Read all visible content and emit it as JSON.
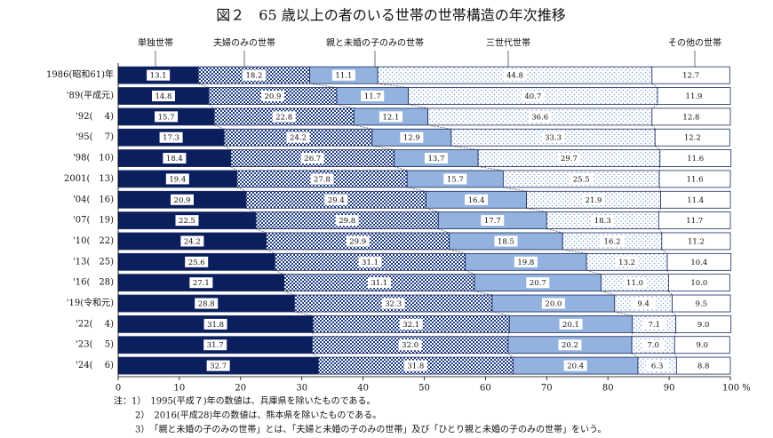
{
  "chart_data": {
    "type": "stacked-bar-horizontal",
    "title": "図２　65 歳以上の者のいる世帯の世帯構造の年次推移",
    "categories": [
      "1986(昭和61)年",
      "'89(平成元)",
      "'92(　 4)",
      "'95(　 7)",
      "'98(　10)",
      "2001(　13)",
      "'04(　16)",
      "'07(　19)",
      "'10(　22)",
      "'13(　25)",
      "'16(　28)",
      "'19(令和元)",
      "'22(　 4)",
      "'23(　 5)",
      "'24(　 6)"
    ],
    "series": [
      {
        "name": "単独世帯",
        "color": "#0b1f5e",
        "pattern": "solid",
        "values": [
          13.1,
          14.8,
          15.7,
          17.3,
          18.4,
          19.4,
          20.9,
          22.5,
          24.2,
          25.6,
          27.1,
          28.8,
          31.8,
          31.7,
          32.7
        ],
        "value_labels": [
          "13.1",
          "14.8",
          "15.7",
          "17.3",
          "18.4",
          "19.4",
          "20.9",
          "22.5",
          "24.2",
          "25.6",
          "27.1",
          "28.8",
          "31.8",
          "31.7",
          "32.7"
        ]
      },
      {
        "name": "夫婦のみの世帯",
        "color": "#1c3a85",
        "pattern": "checker",
        "values": [
          18.2,
          20.9,
          22.8,
          24.2,
          26.7,
          27.8,
          29.4,
          29.8,
          29.9,
          31.1,
          31.1,
          32.3,
          32.1,
          32.0,
          31.8
        ],
        "value_labels": [
          "18.2",
          "20.9",
          "22.8",
          "24.2",
          "26.7",
          "27.8",
          "29.4",
          "29.8",
          "29.9",
          "31.1",
          "31.1",
          "32.3",
          "32.1",
          "32.0",
          "31.8"
        ]
      },
      {
        "name": "親と未婚の子のみの世帯",
        "color": "#93b3de",
        "pattern": "solid",
        "values": [
          11.1,
          11.7,
          12.1,
          12.9,
          13.7,
          15.7,
          16.4,
          17.7,
          18.5,
          19.8,
          20.7,
          20.0,
          20.1,
          20.2,
          20.4
        ],
        "value_labels": [
          "11.1",
          "11.7",
          "12.1",
          "12.9",
          "13.7",
          "15.7",
          "16.4",
          "17.7",
          "18.5",
          "19.8",
          "20.7",
          "20.0",
          "20.1",
          "20.2",
          "20.4"
        ]
      },
      {
        "name": "三世代世帯",
        "color": "#6f96cf",
        "pattern": "dots",
        "values": [
          44.8,
          40.7,
          36.6,
          33.3,
          29.7,
          25.5,
          21.9,
          18.3,
          16.2,
          13.2,
          11.0,
          9.4,
          7.1,
          7.0,
          6.3
        ],
        "value_labels": [
          "44.8",
          "40.7",
          "36.6",
          "33.3",
          "29.7",
          "25.5",
          "21.9",
          "18.3",
          "16.2",
          "13.2",
          "11.0",
          "9.4",
          "7.1",
          "7.0",
          "6.3"
        ]
      },
      {
        "name": "その他の世帯",
        "color": "#ffffff",
        "pattern": "solid",
        "values": [
          12.7,
          11.9,
          12.8,
          12.2,
          11.6,
          11.6,
          11.4,
          11.7,
          11.2,
          10.4,
          10.0,
          9.5,
          9.0,
          9.0,
          8.8
        ],
        "value_labels": [
          "12.7",
          "11.9",
          "12.8",
          "12.2",
          "11.6",
          "11.6",
          "11.4",
          "11.7",
          "11.2",
          "10.4",
          "10.0",
          "9.5",
          "9.0",
          "9.0",
          "8.8"
        ]
      }
    ],
    "xlim": [
      0,
      100
    ],
    "xticks": [
      0,
      10,
      20,
      30,
      40,
      50,
      60,
      70,
      80,
      90,
      {
        "value": 100,
        "label": "100 %"
      }
    ],
    "notes": [
      "注：1）　1995(平成７)年の数値は、兵庫県を除いたものである。",
      "2）　2016(平成28)年の数値は、熊本県を除いたものである。",
      "3）　「親と未婚の子のみの世帯」とは、「夫婦と未婚の子のみの世帯」及び「ひとり親と未婚の子のみの世帯」をいう。"
    ]
  }
}
